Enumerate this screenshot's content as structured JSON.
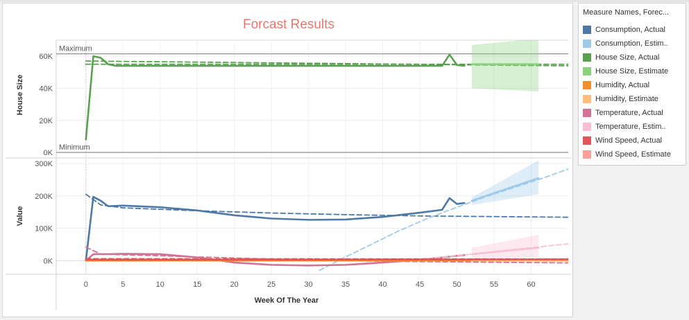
{
  "chart_data": {
    "type": "line",
    "title": "Forcast Results",
    "xlabel": "Week Of The Year",
    "xlim": [
      -4,
      65
    ],
    "xticks": [
      0,
      5,
      10,
      15,
      20,
      25,
      30,
      35,
      40,
      45,
      50,
      55,
      60
    ],
    "top_panel": {
      "ylabel": "House Size",
      "ylim": [
        -3000,
        70000
      ],
      "yticks": [
        0,
        20000,
        40000,
        60000
      ],
      "ytick_labels": [
        "0K",
        "20K",
        "40K",
        "60K"
      ],
      "reference_lines": [
        {
          "label": "Maximum",
          "value": 61500
        },
        {
          "label": "Minimum",
          "value": 0
        }
      ],
      "series": [
        {
          "key": "house_actual",
          "color": "#59a14f",
          "x": [
            0,
            1,
            2,
            3,
            4,
            10,
            20,
            30,
            40,
            47,
            48,
            49,
            50,
            51
          ],
          "y": [
            8000,
            60000,
            59000,
            55000,
            54000,
            54000,
            54000,
            54000,
            54000,
            54000,
            54000,
            61000,
            54500,
            54000
          ]
        },
        {
          "key": "house_trend",
          "color": "#59a14f",
          "dashed": true,
          "x": [
            0,
            65
          ],
          "y": [
            57000,
            54000
          ]
        },
        {
          "key": "house_trend2",
          "color": "#59a14f",
          "dashed": true,
          "x": [
            0,
            65
          ],
          "y": [
            55000,
            55000
          ]
        },
        {
          "key": "house_estimate",
          "color": "#8cd17d",
          "x": [
            52,
            61
          ],
          "y": [
            55000,
            55000
          ],
          "band_upper": [
            67000,
            71000
          ],
          "band_lower": [
            40000,
            38000
          ]
        }
      ]
    },
    "bottom_panel": {
      "ylabel": "Value",
      "ylim": [
        -40000,
        315000
      ],
      "yticks": [
        0,
        100000,
        200000,
        300000
      ],
      "ytick_labels": [
        "0K",
        "100K",
        "200K",
        "300K"
      ],
      "series": [
        {
          "key": "cons_actual",
          "color": "#4e79a7",
          "x": [
            0,
            1,
            2,
            3,
            5,
            10,
            15,
            20,
            25,
            30,
            35,
            40,
            45,
            48,
            49,
            50,
            51
          ],
          "y": [
            0,
            197000,
            185000,
            168000,
            170000,
            165000,
            155000,
            140000,
            130000,
            126000,
            127000,
            135000,
            148000,
            157000,
            193000,
            175000,
            178000
          ]
        },
        {
          "key": "cons_trend",
          "color": "#4e79a7",
          "dashed": true,
          "x": [
            0,
            2,
            5,
            15,
            25,
            35,
            45,
            55,
            65
          ],
          "y": [
            205000,
            172000,
            163000,
            154000,
            147000,
            142000,
            138000,
            136000,
            134000
          ]
        },
        {
          "key": "cons_estimate",
          "color": "#a0cbe8",
          "x": [
            52,
            61
          ],
          "y": [
            185000,
            255000
          ],
          "band_upper": [
            195000,
            310000
          ],
          "band_lower": [
            172000,
            205000
          ]
        },
        {
          "key": "cons_est_trend",
          "color": "#a0cbe8",
          "dashed": true,
          "x": [
            31.5,
            34,
            38,
            42,
            46,
            50,
            54,
            58,
            62,
            65
          ],
          "y": [
            -30000,
            0,
            45000,
            90000,
            130000,
            165000,
            198000,
            228000,
            258000,
            283000
          ]
        },
        {
          "key": "temp_actual",
          "color": "#d37295",
          "x": [
            0,
            1,
            3,
            5,
            10,
            15,
            20,
            25,
            30,
            35,
            40,
            45,
            48,
            50,
            51
          ],
          "y": [
            0,
            20000,
            20000,
            21000,
            20000,
            10000,
            -6000,
            -13000,
            -15000,
            -13000,
            -6000,
            3000,
            10000,
            15000,
            17000
          ]
        },
        {
          "key": "temp_trend",
          "color": "#d37295",
          "dashed": true,
          "x": [
            0,
            2,
            10,
            20,
            30,
            40,
            50,
            60,
            65
          ],
          "y": [
            42000,
            20000,
            15000,
            8000,
            2000,
            -2000,
            -4000,
            -6000,
            -7000
          ]
        },
        {
          "key": "temp_estimate",
          "color": "#fabfd2",
          "x": [
            52,
            61
          ],
          "y": [
            20000,
            40000
          ],
          "band_upper": [
            40000,
            80000
          ],
          "band_lower": [
            5000,
            10000
          ]
        },
        {
          "key": "temp_est_trend",
          "color": "#fabfd2",
          "dashed": true,
          "x": [
            45,
            50,
            55,
            60,
            65
          ],
          "y": [
            5000,
            15000,
            28000,
            40000,
            52000
          ]
        },
        {
          "key": "humid_actual",
          "color": "#f28e2b",
          "x": [
            0,
            65
          ],
          "y": [
            0,
            500
          ]
        },
        {
          "key": "humid_estimate",
          "color": "#ffbe7d",
          "x": [
            52,
            65
          ],
          "y": [
            1500,
            2000
          ]
        },
        {
          "key": "wind_actual",
          "color": "#e15759",
          "x": [
            0,
            10,
            20,
            30,
            40,
            50,
            65
          ],
          "y": [
            3000,
            3000,
            3000,
            3000,
            3500,
            3500,
            4000
          ]
        },
        {
          "key": "wind_trend",
          "color": "#e15759",
          "dashed": true,
          "x": [
            0,
            65
          ],
          "y": [
            6000,
            5000
          ]
        }
      ]
    },
    "legend": {
      "title": "Measure Names, Forec...",
      "placement": "right",
      "items": [
        {
          "label": "Consumption, Actual",
          "color": "#4e79a7"
        },
        {
          "label": "Consumption, Estim..",
          "color": "#a0cbe8"
        },
        {
          "label": "House Size, Actual",
          "color": "#59a14f"
        },
        {
          "label": "House Size, Estimate",
          "color": "#8cd17d"
        },
        {
          "label": "Humidity, Actual",
          "color": "#f28e2b"
        },
        {
          "label": "Humidity, Estimate",
          "color": "#ffbe7d"
        },
        {
          "label": "Temperature, Actual",
          "color": "#d37295"
        },
        {
          "label": "Temperature, Estim..",
          "color": "#fabfd2"
        },
        {
          "label": "Wind Speed, Actual",
          "color": "#e15759"
        },
        {
          "label": "Wind Speed, Estimate",
          "color": "#ff9d9a"
        }
      ]
    }
  }
}
